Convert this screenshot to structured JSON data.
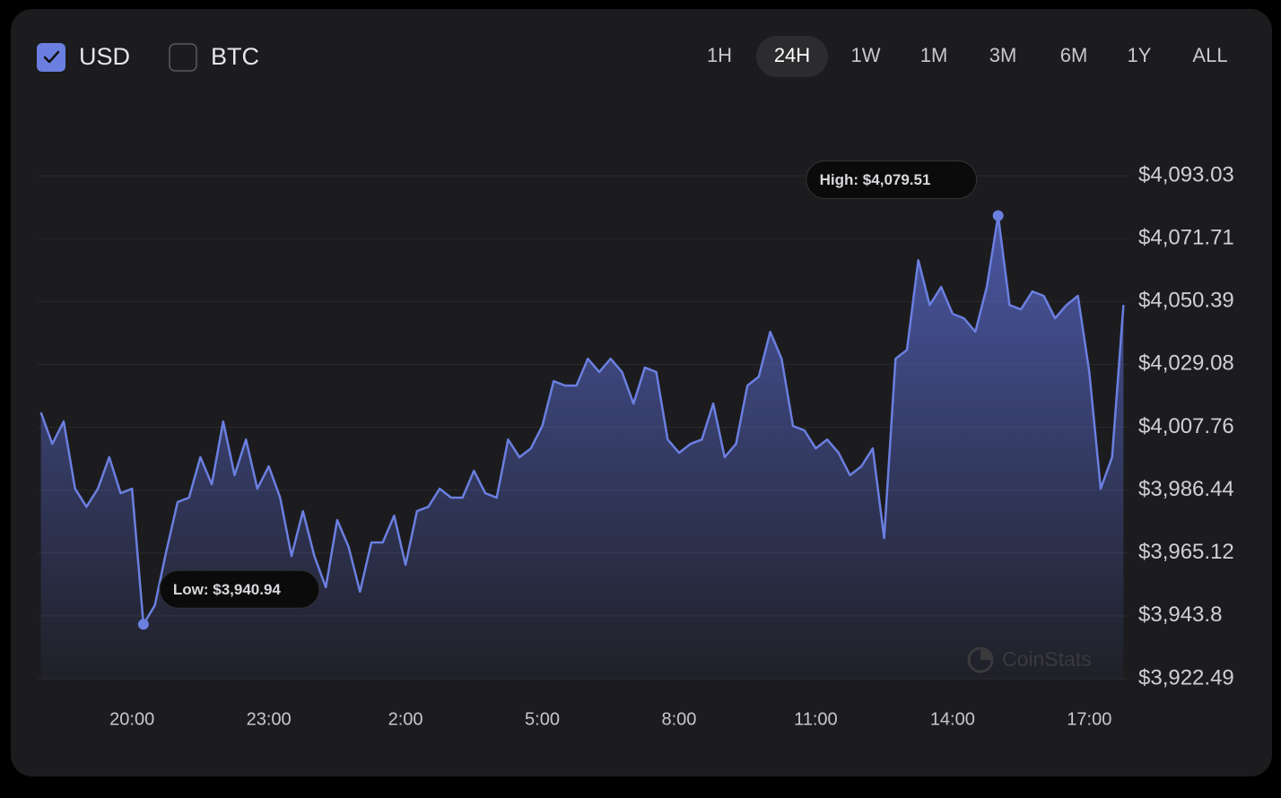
{
  "controls": {
    "currencies": [
      {
        "label": "USD",
        "checked": true
      },
      {
        "label": "BTC",
        "checked": false
      }
    ],
    "ranges": [
      "1H",
      "24H",
      "1W",
      "1M",
      "3M",
      "6M",
      "1Y",
      "ALL"
    ],
    "selected_range": "24H"
  },
  "watermark": "CoinStats",
  "chart_data": {
    "type": "area",
    "x": [
      18,
      18.25,
      18.5,
      18.75,
      19,
      19.25,
      19.5,
      19.75,
      20,
      20.25,
      20.5,
      20.75,
      21,
      21.25,
      21.5,
      21.75,
      22,
      22.25,
      22.5,
      22.75,
      23,
      23.25,
      23.5,
      23.75,
      24,
      24.25,
      24.5,
      24.75,
      25,
      25.25,
      25.5,
      25.75,
      26,
      26.25,
      26.5,
      26.75,
      27,
      27.25,
      27.5,
      27.75,
      28,
      28.25,
      28.5,
      28.75,
      29,
      29.25,
      29.5,
      29.75,
      30,
      30.25,
      30.5,
      30.75,
      31,
      31.25,
      31.5,
      31.75,
      32,
      32.25,
      32.5,
      32.75,
      33,
      33.25,
      33.5,
      33.75,
      34,
      34.25,
      34.5,
      34.75,
      35,
      35.25,
      35.5,
      35.75,
      36,
      36.25,
      36.5,
      36.75,
      37,
      37.25,
      37.5,
      37.75,
      38,
      38.25,
      38.5,
      38.75,
      39,
      39.25,
      39.5,
      39.75,
      40,
      40.25,
      40.5,
      40.75,
      41,
      41.25,
      41.5,
      41.75
    ],
    "series": [
      {
        "name": "USD",
        "color": "#6b7fe0",
        "values": [
          4012.8,
          4002.1,
          4009.7,
          3986.9,
          3980.8,
          3986.9,
          3997.6,
          3985.4,
          3986.9,
          3940.94,
          3947.4,
          3965.6,
          3982.4,
          3983.9,
          3997.6,
          3988.4,
          4009.7,
          3991.5,
          4003.6,
          3986.9,
          3994.5,
          3983.9,
          3964.1,
          3979.3,
          3964.1,
          3953.5,
          3976.3,
          3967.2,
          3952.0,
          3968.7,
          3968.7,
          3977.8,
          3961.1,
          3979.3,
          3980.8,
          3986.9,
          3983.9,
          3983.9,
          3993.0,
          3985.4,
          3983.9,
          4003.6,
          3997.6,
          4000.6,
          4008.2,
          4023.4,
          4021.9,
          4021.9,
          4031.0,
          4026.5,
          4031.0,
          4026.5,
          4015.8,
          4028.0,
          4026.5,
          4003.6,
          3999.1,
          4002.1,
          4003.6,
          4015.8,
          3997.6,
          4002.1,
          4021.9,
          4024.9,
          4040.1,
          4031.0,
          4008.2,
          4006.7,
          4000.6,
          4003.6,
          3999.1,
          3991.5,
          3994.5,
          4000.6,
          3970.2,
          4031.0,
          4034.0,
          4064.4,
          4049.2,
          4055.3,
          4046.2,
          4044.7,
          4040.1,
          4055.3,
          4079.51,
          4049.2,
          4047.7,
          4053.8,
          4052.3,
          4044.7,
          4049.2,
          4052.3,
          4026.5,
          3986.9,
          3997.6,
          4049.2
        ]
      }
    ],
    "annotations": {
      "high": "High: $4,079.51",
      "low": "Low: $3,940.94"
    },
    "xlim": [
      17.93,
      41.86
    ],
    "xticks": [
      {
        "value": 20,
        "label": "20:00"
      },
      {
        "value": 23,
        "label": "23:00"
      },
      {
        "value": 26,
        "label": "2:00"
      },
      {
        "value": 29,
        "label": "5:00"
      },
      {
        "value": 32,
        "label": "8:00"
      },
      {
        "value": 35,
        "label": "11:00"
      },
      {
        "value": 38,
        "label": "14:00"
      },
      {
        "value": 41,
        "label": "17:00"
      }
    ],
    "ylim": [
      3922.49,
      4093.03
    ],
    "yticks": [
      {
        "value": 3922.49,
        "label": "$3,922.49"
      },
      {
        "value": 3943.8,
        "label": "$3,943.8"
      },
      {
        "value": 3965.12,
        "label": "$3,965.12"
      },
      {
        "value": 3986.44,
        "label": "$3,986.44"
      },
      {
        "value": 4007.76,
        "label": "$4,007.76"
      },
      {
        "value": 4029.08,
        "label": "$4,029.08"
      },
      {
        "value": 4050.39,
        "label": "$4,050.39"
      },
      {
        "value": 4071.71,
        "label": "$4,071.71"
      },
      {
        "value": 4093.03,
        "label": "$4,093.03"
      }
    ],
    "grid": true
  }
}
